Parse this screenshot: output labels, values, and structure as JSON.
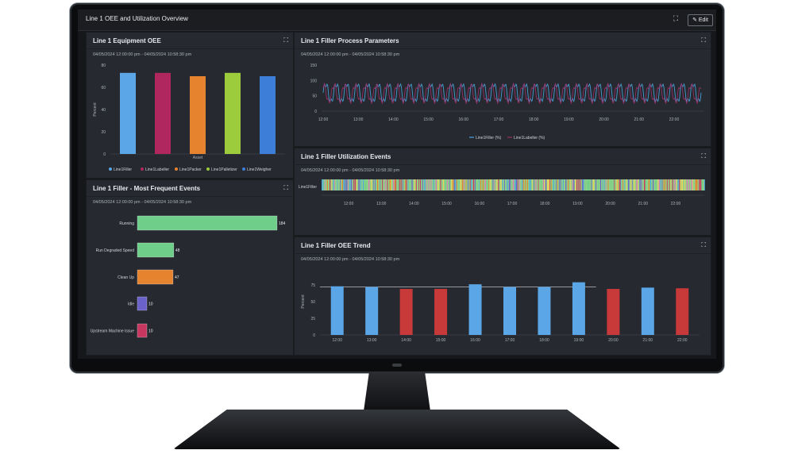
{
  "dashboard": {
    "title": "Line 1 OEE and Utilization Overview",
    "fullscreen_icon": "fullscreen-icon",
    "edit_label": "Edit"
  },
  "colors": {
    "blue": "#5aa6e6",
    "crimson": "#b0275f",
    "orange": "#e5832e",
    "lime": "#9ccc3c",
    "royal": "#3d7ed8",
    "green": "#6fcf8a",
    "purple": "#6a62c9",
    "red": "#c83a3a"
  },
  "panels": {
    "equipment_oee": {
      "title": "Line 1 Equipment OEE",
      "date_range": "04/05/2024 12:00:00 pm - 04/05/2024 10:58:30 pm",
      "chart_data": {
        "type": "bar",
        "categories": [
          "Line1Filler",
          "Line1Labeller",
          "Line1Packer",
          "Line1Palletizer",
          "Line1Weigher"
        ],
        "values": [
          73,
          73,
          70,
          73,
          70
        ],
        "xlabel": "Asset",
        "ylabel": "Percent",
        "ylim": [
          0,
          80
        ],
        "yticks": [
          "0",
          "20",
          "40",
          "60",
          "80"
        ],
        "legend": [
          "Line1Filler",
          "Line1Labeller",
          "Line1Packer",
          "Line1Palletizer",
          "Line1Weigher"
        ],
        "legend_placement": "bottom",
        "grid": false
      }
    },
    "process_parameters": {
      "title": "Line 1 Filler Process Parameters",
      "date_range": "04/05/2024 12:00:00 pm - 04/05/2024 10:58:30 pm",
      "chart_data": {
        "type": "line",
        "x_ticks": [
          "12:00",
          "13:00",
          "14:00",
          "15:00",
          "16:00",
          "17:00",
          "18:00",
          "19:00",
          "20:00",
          "21:00",
          "22:00"
        ],
        "yticks": [
          "0",
          "50",
          "100",
          "150"
        ],
        "ylim": [
          0,
          150
        ],
        "series": [
          {
            "name": "Line1Filler (%)",
            "color": "#4aa8e0",
            "min": 20,
            "max": 100,
            "cycles": 36
          },
          {
            "name": "Line1Labeller (%)",
            "color": "#a0306a",
            "min": 20,
            "max": 95,
            "cycles": 36
          }
        ],
        "legend_placement": "bottom"
      }
    },
    "utilization_events": {
      "title": "Line 1 Filler Utilization Events",
      "date_range": "04/05/2024 12:00:00 pm - 04/05/2024 10:58:30 pm",
      "row_label": "Line1Filler",
      "x_ticks": [
        "12:00",
        "13:00",
        "14:00",
        "15:00",
        "16:00",
        "17:00",
        "18:00",
        "19:00",
        "20:00",
        "21:00",
        "22:00"
      ]
    },
    "most_frequent_events": {
      "title": "Line 1 Filler - Most Frequent Events",
      "date_range": "04/05/2024 12:00:00 pm - 04/05/2024 10:58:30 pm",
      "chart_data": {
        "type": "bar",
        "orientation": "horizontal",
        "categories": [
          "Running",
          "Run Degraded Speed",
          "Clean Up",
          "Idle",
          "Upstream Machine Issue"
        ],
        "values": [
          184,
          48,
          47,
          10,
          10
        ],
        "colors": [
          "#6fcf8a",
          "#6fcf8a",
          "#e5832e",
          "#6a62c9",
          "#c8375f"
        ]
      }
    },
    "oee_trend": {
      "title": "Line 1 Filler OEE Trend",
      "date_range": "04/05/2024 12:00:00 pm - 04/05/2024 10:58:30 pm",
      "chart_data": {
        "type": "bar",
        "categories": [
          "12:00",
          "13:00",
          "14:00",
          "15:00",
          "16:00",
          "17:00",
          "18:00",
          "19:00",
          "20:00",
          "21:00",
          "22:00"
        ],
        "values": [
          73,
          72,
          69,
          69,
          76,
          72,
          72,
          79,
          69,
          71,
          70
        ],
        "colors": [
          "#5aa6e6",
          "#5aa6e6",
          "#c83a3a",
          "#c83a3a",
          "#5aa6e6",
          "#5aa6e6",
          "#5aa6e6",
          "#5aa6e6",
          "#c83a3a",
          "#5aa6e6",
          "#c83a3a"
        ],
        "target": 72,
        "ylabel": "Percent",
        "ylim": [
          0,
          100
        ],
        "yticks": [
          "0",
          "25",
          "50",
          "75"
        ]
      }
    }
  }
}
